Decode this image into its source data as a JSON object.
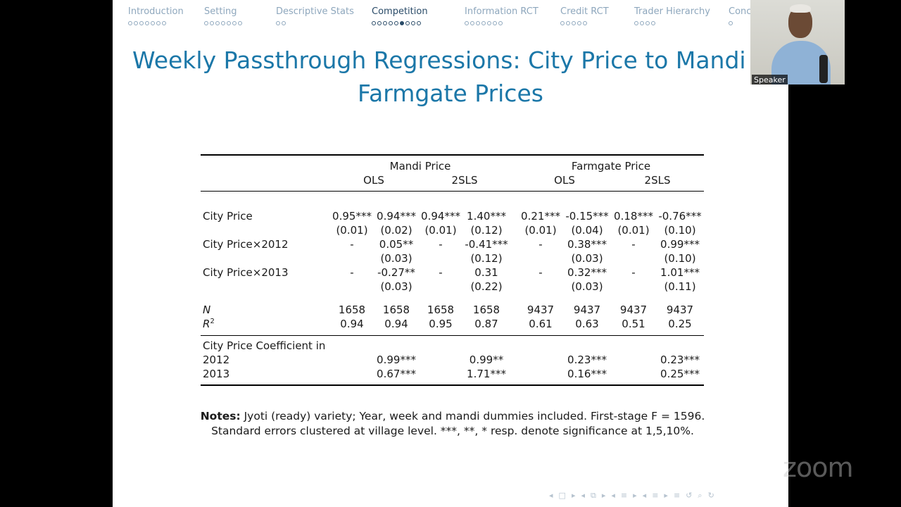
{
  "nav": [
    {
      "label": "Introduction",
      "dots": 7,
      "filled": -1,
      "active": false
    },
    {
      "label": "Setting",
      "dots": 7,
      "filled": -1,
      "active": false
    },
    {
      "label": "Descriptive Stats",
      "dots": 2,
      "filled": -1,
      "active": false
    },
    {
      "label": "Competition",
      "dots": 9,
      "filled": 5,
      "active": true
    },
    {
      "label": "Information RCT",
      "dots": 7,
      "filled": -1,
      "active": false
    },
    {
      "label": "Credit RCT",
      "dots": 5,
      "filled": -1,
      "active": false
    },
    {
      "label": "Trader Hierarchy",
      "dots": 4,
      "filled": -1,
      "active": false
    },
    {
      "label": "Conc",
      "dots": 1,
      "filled": -1,
      "active": false
    }
  ],
  "title": {
    "line1": "Weekly Passthrough Regressions:  City Price to Mandi an",
    "line2": "Farmgate Prices"
  },
  "table": {
    "groups": [
      "Mandi Price",
      "Farmgate Price"
    ],
    "subgroups": [
      "OLS",
      "2SLS",
      "OLS",
      "2SLS"
    ],
    "rows": [
      {
        "label": "City Price",
        "values": [
          "0.95***",
          "0.94***",
          "0.94***",
          "1.40***",
          "0.21***",
          "-0.15***",
          "0.18***",
          "-0.76***"
        ]
      },
      {
        "label": "",
        "values": [
          "(0.01)",
          "(0.02)",
          "(0.01)",
          "(0.12)",
          "(0.01)",
          "(0.04)",
          "(0.01)",
          "(0.10)"
        ]
      },
      {
        "label": "City Price×2012",
        "values": [
          "-",
          "0.05**",
          "-",
          "-0.41***",
          "-",
          "0.38***",
          "-",
          "0.99***"
        ]
      },
      {
        "label": "",
        "values": [
          "",
          "(0.03)",
          "",
          "(0.12)",
          "",
          "(0.03)",
          "",
          "(0.10)"
        ]
      },
      {
        "label": "City Price×2013",
        "values": [
          "-",
          "-0.27**",
          "-",
          "0.31",
          "-",
          "0.32***",
          "-",
          "1.01***"
        ]
      },
      {
        "label": "",
        "values": [
          "",
          "(0.03)",
          "",
          "(0.22)",
          "",
          "(0.03)",
          "",
          "(0.11)"
        ]
      }
    ],
    "n_label": "N",
    "n_values": [
      "1658",
      "1658",
      "1658",
      "1658",
      "9437",
      "9437",
      "9437",
      "9437"
    ],
    "r2_label": "R",
    "r2_sup": "2",
    "r2_values": [
      "0.94",
      "0.94",
      "0.95",
      "0.87",
      "0.61",
      "0.63",
      "0.51",
      "0.25"
    ],
    "coef_label": "City Price Coefficient in",
    "coef_rows": [
      {
        "label": "2012",
        "values": [
          "",
          "0.99***",
          "",
          "0.99**",
          "",
          "0.23***",
          "",
          "0.23***"
        ]
      },
      {
        "label": "2013",
        "values": [
          "",
          "0.67***",
          "",
          "1.71***",
          "",
          "0.16***",
          "",
          "0.25***"
        ]
      }
    ]
  },
  "notes": {
    "bold": "Notes:",
    "line1": " Jyoti (ready) variety; Year, week and mandi dummies included.  First-stage F = 1596.",
    "line2": "Standard errors clustered at village level.  ***, **, * resp. denote significance at 1,5,10%."
  },
  "slide_nav_symbols": [
    "◂",
    "□",
    "▸",
    "◂",
    "⧉",
    "▸",
    "◂",
    "≡",
    "▸",
    "◂",
    "≡",
    "▸",
    "≡",
    "↺",
    "⌕",
    "↻"
  ],
  "speaker": {
    "label": "Speaker"
  },
  "zoom_logo": "zoom"
}
